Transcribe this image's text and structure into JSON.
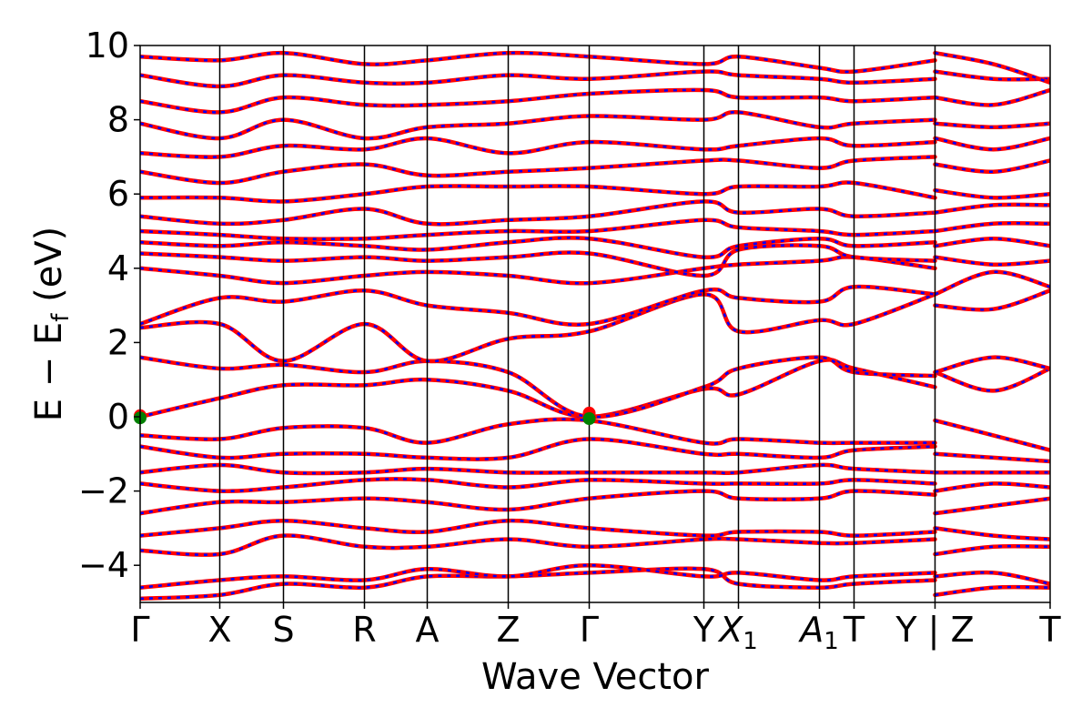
{
  "chart_data": {
    "type": "line",
    "title": "",
    "xlabel": "Wave Vector",
    "ylabel_parts": {
      "main": "E − E",
      "sub": "f",
      "unit": " (eV)"
    },
    "ylim": [
      -5,
      10
    ],
    "yticks": [
      -4,
      -2,
      0,
      2,
      4,
      6,
      8,
      10
    ],
    "ytick_labels": [
      "−4",
      "−2",
      "0",
      "2",
      "4",
      "6",
      "8",
      "10"
    ],
    "kpath_ticks": [
      {
        "label": "Γ",
        "k": 0.0
      },
      {
        "label": "X",
        "k": 0.0875
      },
      {
        "label": "S",
        "k": 0.1575
      },
      {
        "label": "R",
        "k": 0.2465
      },
      {
        "label": "A",
        "k": 0.3155
      },
      {
        "label": "Z",
        "k": 0.4045
      },
      {
        "label": "Γ",
        "k": 0.4935
      },
      {
        "label": "Y",
        "k": 0.6195
      },
      {
        "label": "X",
        "sub": "1",
        "k": 0.6575,
        "italic": true
      },
      {
        "label": "A",
        "sub": "1",
        "k": 0.7465,
        "italic": true
      },
      {
        "label": "T",
        "k": 0.7845
      },
      {
        "label": "Y | Z",
        "k": 0.8735
      },
      {
        "label": "T",
        "k": 1.0
      }
    ],
    "kpath_break_at": 0.8735,
    "series": [
      {
        "style": "solid",
        "color": "#ff0000"
      },
      {
        "style": "dashed",
        "color": "#0000ff"
      }
    ],
    "bands": [
      {
        "k": [
          0.0,
          0.0875,
          0.1575,
          0.2465,
          0.3155,
          0.4045,
          0.4935,
          0.6195,
          0.6575,
          0.7465,
          0.7845,
          0.8735
        ],
        "e": [
          -4.9,
          -4.8,
          -4.5,
          -4.6,
          -4.3,
          -4.3,
          -4.2,
          -4.1,
          -4.5,
          -4.6,
          -4.5,
          -4.4
        ]
      },
      {
        "k": [
          0.0,
          0.0875,
          0.1575,
          0.2465,
          0.3155,
          0.4045,
          0.4935,
          0.6195,
          0.6575,
          0.7465,
          0.7845,
          0.8735
        ],
        "e": [
          -4.6,
          -4.4,
          -4.3,
          -4.4,
          -4.1,
          -4.3,
          -4.0,
          -4.3,
          -4.2,
          -4.4,
          -4.3,
          -4.2
        ]
      },
      {
        "k": [
          0.0,
          0.0875,
          0.1575,
          0.2465,
          0.3155,
          0.4045,
          0.4935,
          0.6195,
          0.6575,
          0.7465,
          0.7845,
          0.8735
        ],
        "e": [
          -3.6,
          -3.7,
          -3.2,
          -3.5,
          -3.5,
          -3.3,
          -3.5,
          -3.3,
          -3.3,
          -3.4,
          -3.4,
          -3.3
        ]
      },
      {
        "k": [
          0.0,
          0.0875,
          0.1575,
          0.2465,
          0.3155,
          0.4045,
          0.4935,
          0.6195,
          0.6575,
          0.7465,
          0.7845,
          0.8735
        ],
        "e": [
          -3.2,
          -3.0,
          -2.8,
          -3.0,
          -3.1,
          -2.8,
          -3.0,
          -3.2,
          -3.1,
          -3.1,
          -3.2,
          -3.1
        ]
      },
      {
        "k": [
          0.0,
          0.0875,
          0.1575,
          0.2465,
          0.3155,
          0.4045,
          0.4935,
          0.6195,
          0.6575,
          0.7465,
          0.7845,
          0.8735
        ],
        "e": [
          -2.6,
          -2.3,
          -2.3,
          -2.2,
          -2.3,
          -2.5,
          -2.2,
          -2.0,
          -2.2,
          -2.2,
          -2.0,
          -2.1
        ]
      },
      {
        "k": [
          0.0,
          0.0875,
          0.1575,
          0.2465,
          0.3155,
          0.4045,
          0.4935,
          0.6195,
          0.6575,
          0.7465,
          0.7845,
          0.8735
        ],
        "e": [
          -1.8,
          -2.0,
          -1.9,
          -1.7,
          -1.7,
          -1.9,
          -1.7,
          -1.8,
          -1.8,
          -1.8,
          -1.7,
          -1.8
        ]
      },
      {
        "k": [
          0.0,
          0.0875,
          0.1575,
          0.2465,
          0.3155,
          0.4045,
          0.4935,
          0.6195,
          0.6575,
          0.7465,
          0.7845,
          0.8735
        ],
        "e": [
          -1.5,
          -1.3,
          -1.5,
          -1.5,
          -1.4,
          -1.5,
          -1.5,
          -1.5,
          -1.5,
          -1.3,
          -1.4,
          -1.5
        ]
      },
      {
        "k": [
          0.0,
          0.0875,
          0.1575,
          0.2465,
          0.3155,
          0.4045,
          0.4935,
          0.6195,
          0.6575,
          0.7465,
          0.7845,
          0.8735
        ],
        "e": [
          -0.8,
          -1.1,
          -1.0,
          -1.0,
          -1.1,
          -1.1,
          -0.6,
          -1.0,
          -1.0,
          -1.1,
          -0.9,
          -0.8
        ]
      },
      {
        "k": [
          0.0,
          0.0875,
          0.1575,
          0.2465,
          0.3155,
          0.4045,
          0.4935,
          0.6195,
          0.6575,
          0.7465,
          0.7845,
          0.8735
        ],
        "e": [
          -0.5,
          -0.6,
          -0.3,
          -0.3,
          -0.7,
          -0.2,
          -0.1,
          -0.7,
          -0.6,
          -0.7,
          -0.7,
          -0.7
        ]
      },
      {
        "k": [
          0.0,
          0.0875,
          0.1575,
          0.2465,
          0.3155,
          0.4045,
          0.4935,
          0.6195,
          0.6575,
          0.7465,
          0.7845,
          0.8735
        ],
        "e": [
          0.0,
          0.5,
          0.85,
          0.85,
          1.0,
          0.7,
          0.0,
          0.75,
          0.6,
          1.5,
          1.3,
          0.8
        ]
      },
      {
        "k": [
          0.0,
          0.0875,
          0.1575,
          0.2465,
          0.3155,
          0.4045,
          0.4935,
          0.6195,
          0.6575,
          0.7465,
          0.7845,
          0.8735
        ],
        "e": [
          1.6,
          1.3,
          1.4,
          1.2,
          1.5,
          1.2,
          0.0,
          0.8,
          1.3,
          1.6,
          1.2,
          1.1
        ]
      },
      {
        "k": [
          0.0,
          0.0875,
          0.1575,
          0.2465,
          0.3155,
          0.4045,
          0.4935,
          0.6195,
          0.6575,
          0.7465,
          0.7845,
          0.8735
        ],
        "e": [
          2.4,
          2.5,
          1.5,
          2.5,
          1.5,
          2.1,
          2.3,
          3.3,
          2.3,
          2.6,
          2.5,
          3.3
        ]
      },
      {
        "k": [
          0.0,
          0.0875,
          0.1575,
          0.2465,
          0.3155,
          0.4045,
          0.4935,
          0.6195,
          0.6575,
          0.7465,
          0.7845,
          0.8735
        ],
        "e": [
          2.5,
          3.2,
          3.1,
          3.4,
          3.0,
          2.8,
          2.5,
          3.4,
          3.2,
          3.1,
          3.5,
          3.3
        ]
      },
      {
        "k": [
          0.0,
          0.0875,
          0.1575,
          0.2465,
          0.3155,
          0.4045,
          0.4935,
          0.6195,
          0.6575,
          0.7465,
          0.7845,
          0.8735
        ],
        "e": [
          4.0,
          3.8,
          3.6,
          3.8,
          3.9,
          3.8,
          3.6,
          4.0,
          4.1,
          4.2,
          4.3,
          4.0
        ]
      },
      {
        "k": [
          0.0,
          0.0875,
          0.1575,
          0.2465,
          0.3155,
          0.4045,
          0.4935,
          0.6195,
          0.6575,
          0.7465,
          0.7845,
          0.8735
        ],
        "e": [
          4.4,
          4.3,
          4.2,
          4.3,
          4.2,
          4.3,
          4.4,
          3.8,
          4.5,
          4.6,
          4.3,
          4.2
        ]
      },
      {
        "k": [
          0.0,
          0.0875,
          0.1575,
          0.2465,
          0.3155,
          0.4045,
          0.4935,
          0.6195,
          0.6575,
          0.7465,
          0.7845,
          0.8735
        ],
        "e": [
          4.7,
          4.6,
          4.7,
          4.6,
          4.5,
          4.7,
          4.8,
          4.3,
          4.6,
          4.8,
          4.6,
          4.7
        ]
      },
      {
        "k": [
          0.0,
          0.0875,
          0.1575,
          0.2465,
          0.3155,
          0.4045,
          0.4935,
          0.6195,
          0.6575,
          0.7465,
          0.7845,
          0.8735
        ],
        "e": [
          5.0,
          4.9,
          4.8,
          4.8,
          4.9,
          5.0,
          5.0,
          5.3,
          5.1,
          5.0,
          4.9,
          5.0
        ]
      },
      {
        "k": [
          0.0,
          0.0875,
          0.1575,
          0.2465,
          0.3155,
          0.4045,
          0.4935,
          0.6195,
          0.6575,
          0.7465,
          0.7845,
          0.8735
        ],
        "e": [
          5.4,
          5.2,
          5.3,
          5.6,
          5.2,
          5.3,
          5.4,
          5.8,
          5.5,
          5.6,
          5.4,
          5.5
        ]
      },
      {
        "k": [
          0.0,
          0.0875,
          0.1575,
          0.2465,
          0.3155,
          0.4045,
          0.4935,
          0.6195,
          0.6575,
          0.7465,
          0.7845,
          0.8735
        ],
        "e": [
          5.9,
          5.9,
          5.8,
          6.0,
          6.2,
          6.2,
          6.2,
          6.0,
          6.2,
          6.2,
          6.3,
          5.9
        ]
      },
      {
        "k": [
          0.0,
          0.0875,
          0.1575,
          0.2465,
          0.3155,
          0.4045,
          0.4935,
          0.6195,
          0.6575,
          0.7465,
          0.7845,
          0.8735
        ],
        "e": [
          6.6,
          6.3,
          6.6,
          6.8,
          6.5,
          6.6,
          6.7,
          6.9,
          6.9,
          6.7,
          6.9,
          7.0
        ]
      },
      {
        "k": [
          0.0,
          0.0875,
          0.1575,
          0.2465,
          0.3155,
          0.4045,
          0.4935,
          0.6195,
          0.6575,
          0.7465,
          0.7845,
          0.8735
        ],
        "e": [
          7.1,
          7.0,
          7.3,
          7.2,
          7.5,
          7.1,
          7.4,
          7.2,
          7.3,
          7.5,
          7.3,
          7.4
        ]
      },
      {
        "k": [
          0.0,
          0.0875,
          0.1575,
          0.2465,
          0.3155,
          0.4045,
          0.4935,
          0.6195,
          0.6575,
          0.7465,
          0.7845,
          0.8735
        ],
        "e": [
          7.9,
          7.5,
          8.0,
          7.5,
          7.8,
          7.9,
          8.1,
          8.0,
          8.2,
          7.8,
          7.9,
          8.0
        ]
      },
      {
        "k": [
          0.0,
          0.0875,
          0.1575,
          0.2465,
          0.3155,
          0.4045,
          0.4935,
          0.6195,
          0.6575,
          0.7465,
          0.7845,
          0.8735
        ],
        "e": [
          8.5,
          8.2,
          8.6,
          8.4,
          8.4,
          8.5,
          8.7,
          8.8,
          8.6,
          8.6,
          8.5,
          8.6
        ]
      },
      {
        "k": [
          0.0,
          0.0875,
          0.1575,
          0.2465,
          0.3155,
          0.4045,
          0.4935,
          0.6195,
          0.6575,
          0.7465,
          0.7845,
          0.8735
        ],
        "e": [
          9.2,
          8.9,
          9.2,
          9.0,
          9.0,
          9.2,
          9.1,
          9.3,
          9.2,
          9.1,
          9.0,
          9.1
        ]
      },
      {
        "k": [
          0.0,
          0.0875,
          0.1575,
          0.2465,
          0.3155,
          0.4045,
          0.4935,
          0.6195,
          0.6575,
          0.7465,
          0.7845,
          0.8735
        ],
        "e": [
          9.7,
          9.6,
          9.8,
          9.5,
          9.6,
          9.8,
          9.7,
          9.5,
          9.7,
          9.4,
          9.3,
          9.6
        ]
      },
      {
        "k": [
          0.8735,
          0.9375,
          1.0
        ],
        "e": [
          -4.8,
          -4.6,
          -4.6
        ]
      },
      {
        "k": [
          0.8735,
          0.9375,
          1.0
        ],
        "e": [
          -4.3,
          -4.2,
          -4.5
        ]
      },
      {
        "k": [
          0.8735,
          0.9375,
          1.0
        ],
        "e": [
          -3.7,
          -3.5,
          -3.5
        ]
      },
      {
        "k": [
          0.8735,
          0.9375,
          1.0
        ],
        "e": [
          -3.0,
          -3.2,
          -3.3
        ]
      },
      {
        "k": [
          0.8735,
          0.9375,
          1.0
        ],
        "e": [
          -2.6,
          -2.4,
          -2.2
        ]
      },
      {
        "k": [
          0.8735,
          0.9375,
          1.0
        ],
        "e": [
          -2.0,
          -1.8,
          -1.9
        ]
      },
      {
        "k": [
          0.8735,
          0.9375,
          1.0
        ],
        "e": [
          -1.5,
          -1.5,
          -1.5
        ]
      },
      {
        "k": [
          0.8735,
          0.9375,
          1.0
        ],
        "e": [
          -1.0,
          -1.1,
          -1.2
        ]
      },
      {
        "k": [
          0.8735,
          0.9375,
          1.0
        ],
        "e": [
          -0.1,
          -0.5,
          -0.9
        ]
      },
      {
        "k": [
          0.8735,
          0.9375,
          1.0
        ],
        "e": [
          1.2,
          0.7,
          1.3
        ]
      },
      {
        "k": [
          0.8735,
          0.9375,
          1.0
        ],
        "e": [
          1.2,
          1.6,
          1.3
        ]
      },
      {
        "k": [
          0.8735,
          0.9375,
          1.0
        ],
        "e": [
          3.0,
          2.9,
          3.4
        ]
      },
      {
        "k": [
          0.8735,
          0.9375,
          1.0
        ],
        "e": [
          3.3,
          3.9,
          3.5
        ]
      },
      {
        "k": [
          0.8735,
          0.9375,
          1.0
        ],
        "e": [
          4.3,
          4.1,
          4.2
        ]
      },
      {
        "k": [
          0.8735,
          0.9375,
          1.0
        ],
        "e": [
          4.6,
          4.8,
          4.6
        ]
      },
      {
        "k": [
          0.8735,
          0.9375,
          1.0
        ],
        "e": [
          5.0,
          5.2,
          5.2
        ]
      },
      {
        "k": [
          0.8735,
          0.9375,
          1.0
        ],
        "e": [
          5.5,
          5.7,
          5.7
        ]
      },
      {
        "k": [
          0.8735,
          0.9375,
          1.0
        ],
        "e": [
          6.1,
          5.9,
          6.0
        ]
      },
      {
        "k": [
          0.8735,
          0.9375,
          1.0
        ],
        "e": [
          6.8,
          6.6,
          6.9
        ]
      },
      {
        "k": [
          0.8735,
          0.9375,
          1.0
        ],
        "e": [
          7.5,
          7.2,
          7.5
        ]
      },
      {
        "k": [
          0.8735,
          0.9375,
          1.0
        ],
        "e": [
          7.9,
          7.8,
          7.9
        ]
      },
      {
        "k": [
          0.8735,
          0.9375,
          1.0
        ],
        "e": [
          8.6,
          8.4,
          8.8
        ]
      },
      {
        "k": [
          0.8735,
          0.9375,
          1.0
        ],
        "e": [
          9.3,
          9.1,
          9.1
        ]
      },
      {
        "k": [
          0.8735,
          0.9375,
          1.0
        ],
        "e": [
          9.8,
          9.5,
          9.0
        ]
      }
    ],
    "markers": [
      {
        "k": 0.0,
        "e": 0.03,
        "color": "#ff0000"
      },
      {
        "k": 0.0,
        "e": -0.03,
        "color": "#008000"
      },
      {
        "k": 0.4935,
        "e": 0.1,
        "color": "#ff0000"
      },
      {
        "k": 0.4935,
        "e": -0.05,
        "color": "#008000"
      }
    ],
    "grid": false,
    "legend": "none",
    "colors": {
      "band_primary": "#ff0000",
      "band_overlay": "#0000ff",
      "marker_vbm": "#008000",
      "axis": "#000000"
    }
  }
}
